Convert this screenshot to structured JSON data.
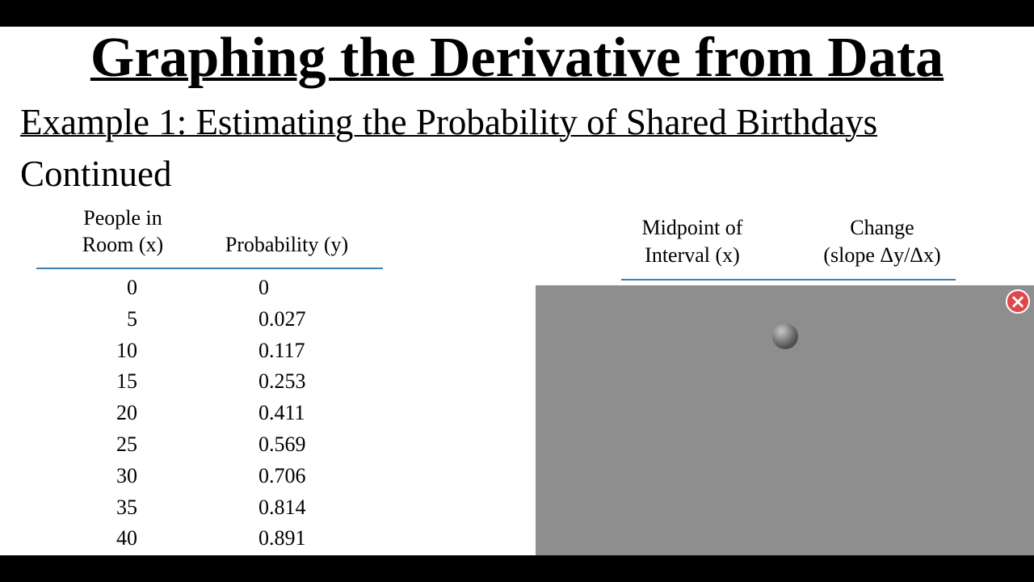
{
  "slide": {
    "title": "Graphing the Derivative from Data",
    "subtitle": "Example 1: Estimating the Probability of Shared Birthdays",
    "continued": "Continued",
    "left_table": {
      "headers": [
        [
          "People in",
          "Room (x)"
        ],
        [
          "Probability (y)"
        ]
      ],
      "rows": [
        [
          0,
          0
        ],
        [
          5,
          0.027
        ],
        [
          10,
          0.117
        ],
        [
          15,
          0.253
        ],
        [
          20,
          0.411
        ],
        [
          25,
          0.569
        ],
        [
          30,
          0.706
        ],
        [
          35,
          0.814
        ],
        [
          40,
          0.891
        ]
      ]
    },
    "right_table": {
      "headers": [
        [
          "Midpoint of",
          "Interval (x)"
        ],
        [
          "Change",
          "(slope Δy/Δx)"
        ]
      ]
    },
    "overlay": {
      "close_button": "×"
    }
  }
}
